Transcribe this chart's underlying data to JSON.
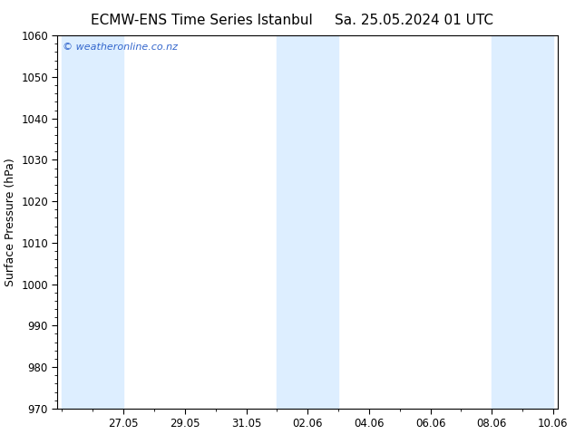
{
  "title_left": "ECMW-ENS Time Series Istanbul",
  "title_right": "Sa. 25.05.2024 01 UTC",
  "ylabel": "Surface Pressure (hPa)",
  "ylim": [
    970,
    1060
  ],
  "yticks": [
    970,
    980,
    990,
    1000,
    1010,
    1020,
    1030,
    1040,
    1050,
    1060
  ],
  "x_tick_labels": [
    "27.05",
    "29.05",
    "31.05",
    "02.06",
    "04.06",
    "06.06",
    "08.06",
    "10.06"
  ],
  "background_color": "#ffffff",
  "band_color": "#ddeeff",
  "watermark_text": "© weatheronline.co.nz",
  "watermark_color": "#3366cc",
  "title_fontsize": 11,
  "axis_label_fontsize": 9,
  "tick_fontsize": 8.5,
  "fig_width": 6.34,
  "fig_height": 4.9,
  "dpi": 100
}
